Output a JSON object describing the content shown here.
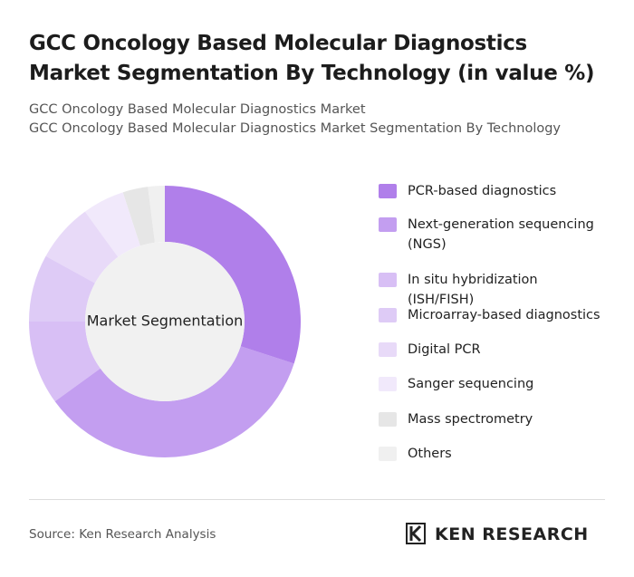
{
  "title": "GCC Oncology Based Molecular Diagnostics Market Segmentation By Technology (in value %)",
  "subtitles": [
    "GCC Oncology Based Molecular Diagnostics Market",
    "GCC Oncology Based Molecular Diagnostics Market Segmentation By Technology"
  ],
  "chart_data": {
    "type": "donut",
    "center_label": "Market Segmentation",
    "categories": [
      "PCR-based diagnostics",
      "Next-generation sequencing (NGS)",
      "In situ hybridization (ISH/FISH)",
      "Microarray-based diagnostics",
      "Digital PCR",
      "Sanger sequencing",
      "Mass spectrometry",
      "Others"
    ],
    "values": [
      30,
      35,
      10,
      8,
      7,
      5,
      3,
      2
    ],
    "colors": [
      "#b07fea",
      "#c39ef0",
      "#d8bff5",
      "#decbf6",
      "#e8daf8",
      "#f1e9fb",
      "#e6e6e6",
      "#f0f0f0"
    ]
  },
  "source": "Source: Ken Research Analysis",
  "brand": "KEN RESEARCH"
}
